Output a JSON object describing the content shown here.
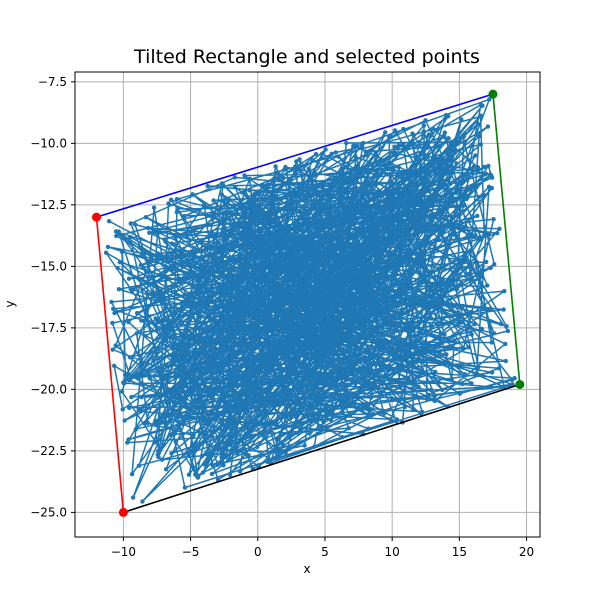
{
  "chart_data": {
    "type": "line",
    "title": "Tilted Rectangle and selected points",
    "xlabel": "x",
    "ylabel": "y",
    "xlim": [
      -13.6,
      21.0
    ],
    "ylim": [
      -26.0,
      -7.1
    ],
    "xticks": [
      -10,
      -5,
      0,
      5,
      10,
      15,
      20
    ],
    "yticks": [
      -25.0,
      -22.5,
      -20.0,
      -17.5,
      -15.0,
      -12.5,
      -10.0,
      -7.5
    ],
    "xtick_labels": [
      "−10",
      "−5",
      "0",
      "5",
      "10",
      "15",
      "20"
    ],
    "ytick_labels": [
      "−25.0",
      "−22.5",
      "−20.0",
      "−17.5",
      "−15.0",
      "−12.5",
      "−10.0",
      "−7.5"
    ],
    "grid": true,
    "corners": {
      "top_left": [
        -12.0,
        -13.0
      ],
      "top_right": [
        17.5,
        -8.0
      ],
      "bottom_right": [
        19.5,
        -19.8
      ],
      "bottom_left": [
        -10.0,
        -25.0
      ]
    },
    "edges": [
      {
        "from": "top_left",
        "to": "top_right",
        "color": "#0000ff"
      },
      {
        "from": "top_right",
        "to": "bottom_right",
        "color": "#008000"
      },
      {
        "from": "bottom_right",
        "to": "bottom_left",
        "color": "#000000"
      },
      {
        "from": "bottom_left",
        "to": "top_left",
        "color": "#ff0000"
      }
    ],
    "selected_points": [
      {
        "x": -12.0,
        "y": -13.0,
        "color": "#ff0000"
      },
      {
        "x": -10.0,
        "y": -25.0,
        "color": "#ff0000"
      },
      {
        "x": 17.5,
        "y": -8.0,
        "color": "#008000"
      },
      {
        "x": 19.5,
        "y": -19.8,
        "color": "#008000"
      }
    ],
    "random_series": {
      "color": "#1f77b4",
      "count": 900,
      "description_free_region": "uniform random points inside the tilted rectangle connected in order"
    }
  }
}
